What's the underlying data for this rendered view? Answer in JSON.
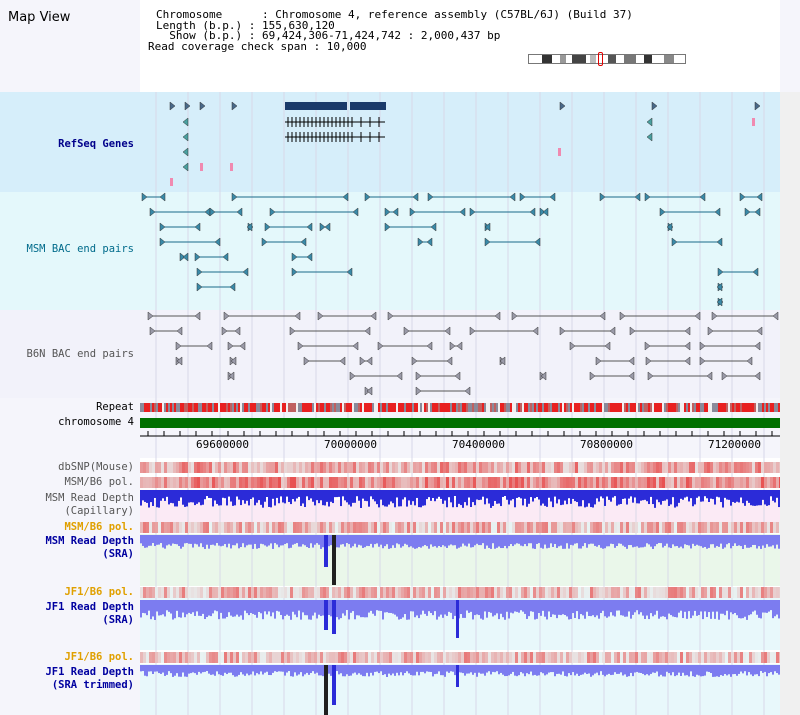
{
  "header": {
    "title": "Map View",
    "chromosome_line": "Chromosome      : Chromosome 4, reference assembly (C57BL/6J) (Build 37)",
    "length_line": "Length (b.p.) : 155,630,120",
    "show_line": "  Show (b.p.) : 69,424,306-71,424,742 : 2,000,437 bp",
    "coverage_line": "Read coverage check span : 10,000"
  },
  "tracks": {
    "refseq": "RefSeq Genes",
    "msm_bac": "MSM BAC end pairs",
    "b6n_bac": "B6N BAC end pairs",
    "repeat": "Repeat",
    "chromosome": "chromosome 4",
    "dbsnp": "dbSNP(Mouse)",
    "msm_b6_pol_1": "MSM/B6 pol.",
    "msm_read_depth_cap_1": "MSM Read Depth",
    "msm_read_depth_cap_2": "(Capillary)",
    "msm_b6_pol_2": "MSM/B6 pol.",
    "msm_read_depth_sra_1": "MSM Read Depth",
    "msm_read_depth_sra_2": "(SRA)",
    "jf1_b6_pol_1": "JF1/B6 pol.",
    "jf1_read_depth_sra_1": "JF1 Read Depth",
    "jf1_read_depth_sra_2": "(SRA)",
    "jf1_b6_pol_2": "JF1/B6 pol.",
    "jf1_read_depth_trim_1": "JF1 Read Depth",
    "jf1_read_depth_trim_2": "(SRA trimmed)"
  },
  "ruler": {
    "ticks": [
      "69600000",
      "70000000",
      "70400000",
      "70800000",
      "71200000"
    ]
  },
  "colors": {
    "refseq_bg": "#d6eefa",
    "msm_bg": "#e4f8fb",
    "b6n_bg": "#f2f2fa",
    "gene": "#1a3a6a",
    "chromosome_bar": "#007000",
    "depth_blue": "#2b2bd8",
    "depth_light": "#7c7cf0",
    "snp_red": "#e83030"
  }
}
